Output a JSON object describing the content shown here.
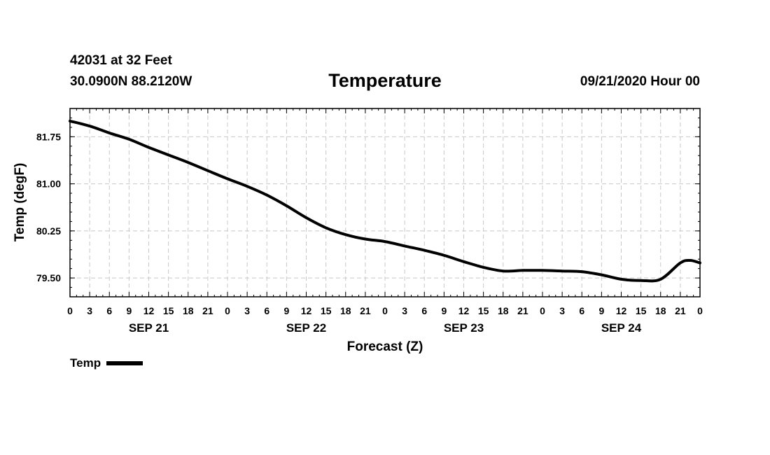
{
  "header": {
    "station": "42031 at 32 Feet",
    "coords": "30.0900N 88.2120W",
    "title": "Temperature",
    "datetime": "09/21/2020 Hour 00"
  },
  "legend": {
    "label": "Temp"
  },
  "chart_data": {
    "type": "line",
    "title": "Temperature",
    "xlabel": "Forecast (Z)",
    "ylabel": "Temp (degF)",
    "xlim": [
      0,
      96
    ],
    "ylim": [
      79.2,
      82.2
    ],
    "yticks": [
      79.5,
      80.25,
      81.0,
      81.75
    ],
    "ytick_labels": [
      "79.50",
      "80.25",
      "81.00",
      "81.75"
    ],
    "xtick_hours": [
      0,
      3,
      6,
      9,
      12,
      15,
      18,
      21,
      24,
      27,
      30,
      33,
      36,
      39,
      42,
      45,
      48,
      51,
      54,
      57,
      60,
      63,
      66,
      69,
      72,
      75,
      78,
      81,
      84,
      87,
      90,
      93,
      96
    ],
    "xtick_labels": [
      "0",
      "3",
      "6",
      "9",
      "12",
      "15",
      "18",
      "21",
      "0",
      "3",
      "6",
      "9",
      "12",
      "15",
      "18",
      "21",
      "0",
      "3",
      "6",
      "9",
      "12",
      "15",
      "18",
      "21",
      "0",
      "3",
      "6",
      "9",
      "12",
      "15",
      "18",
      "21",
      "0"
    ],
    "date_labels": [
      {
        "hour": 12,
        "label": "SEP 21"
      },
      {
        "hour": 36,
        "label": "SEP 22"
      },
      {
        "hour": 60,
        "label": "SEP 23"
      },
      {
        "hour": 84,
        "label": "SEP 24"
      }
    ],
    "series": [
      {
        "name": "Temp",
        "x": [
          0,
          3,
          6,
          9,
          12,
          15,
          18,
          21,
          24,
          27,
          30,
          33,
          36,
          39,
          42,
          45,
          48,
          51,
          54,
          57,
          60,
          63,
          66,
          69,
          72,
          75,
          78,
          81,
          84,
          87,
          90,
          93,
          94.5,
          96
        ],
        "y": [
          82.0,
          81.92,
          81.81,
          81.71,
          81.58,
          81.46,
          81.34,
          81.21,
          81.08,
          80.96,
          80.82,
          80.65,
          80.46,
          80.3,
          80.19,
          80.12,
          80.08,
          80.01,
          79.94,
          79.86,
          79.76,
          79.67,
          79.61,
          79.62,
          79.62,
          79.61,
          79.6,
          79.55,
          79.48,
          79.46,
          79.48,
          79.74,
          79.78,
          79.74
        ]
      }
    ]
  }
}
